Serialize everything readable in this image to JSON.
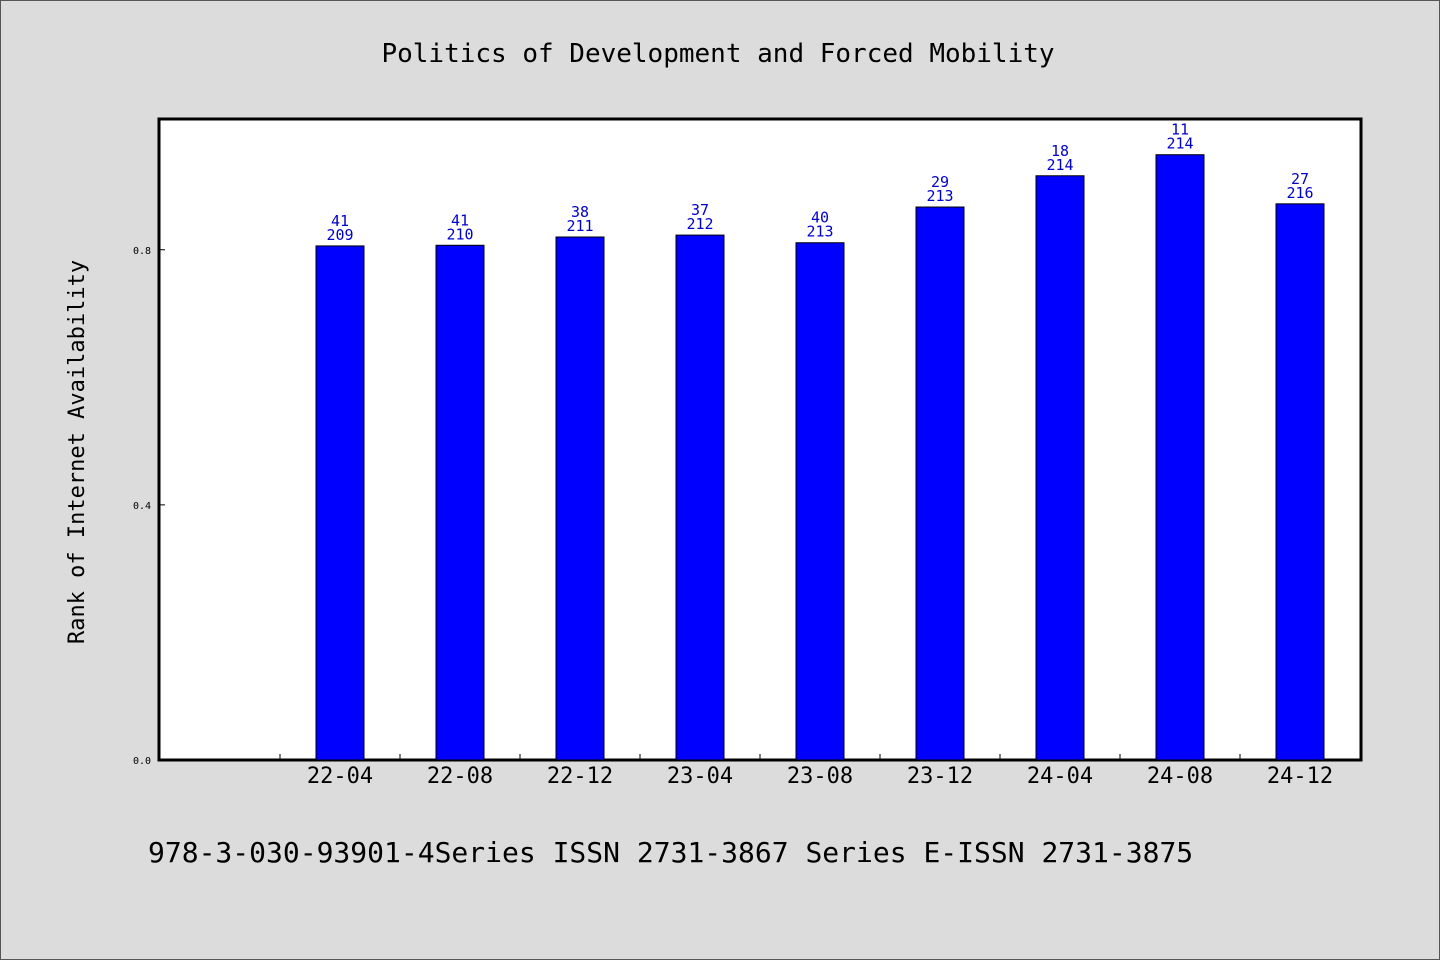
{
  "chart_data": {
    "type": "bar",
    "title": "Politics of Development and Forced Mobility",
    "ylabel": "Rank of Internet Availability",
    "xlabel": "",
    "categories": [
      "22-04",
      "22-08",
      "22-12",
      "23-04",
      "23-08",
      "23-12",
      "24-04",
      "24-08",
      "24-12"
    ],
    "values": [
      0.806,
      0.807,
      0.82,
      0.823,
      0.811,
      0.867,
      0.916,
      0.949,
      0.872
    ],
    "labels_top": [
      "41",
      "41",
      "38",
      "37",
      "40",
      "29",
      "18",
      "11",
      "27"
    ],
    "labels_bottom": [
      "209",
      "210",
      "211",
      "212",
      "213",
      "213",
      "214",
      "214",
      "216"
    ],
    "ylim": [
      0,
      1.005
    ],
    "yticks": [
      0.0,
      0.4,
      0.8
    ],
    "ytick_labels": [
      "0.0",
      "0.4",
      "0.8"
    ],
    "bar_color": "#0000ff",
    "label_color": "#0000cc",
    "grid": false,
    "legend": "none"
  },
  "footer": "978-3-030-93901-4Series ISSN 2731-3867 Series E-ISSN 2731-3875"
}
